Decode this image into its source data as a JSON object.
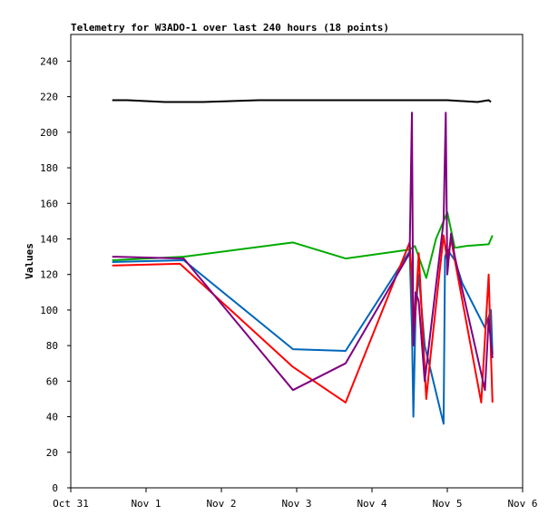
{
  "chart_data": {
    "type": "line",
    "title": "Telemetry for W3ADO-1 over last 240 hours (18 points)",
    "xlabel": "",
    "ylabel": "Values",
    "ylim": [
      0,
      255
    ],
    "yticks": [
      0,
      20,
      40,
      60,
      80,
      100,
      120,
      140,
      160,
      180,
      200,
      220,
      240
    ],
    "xlim": [
      "Oct 31",
      "Nov 6"
    ],
    "xticks": [
      "Oct 31",
      "Nov 1",
      "Nov 2",
      "Nov 3",
      "Nov 4",
      "Nov 5",
      "Nov 6"
    ],
    "grid": false,
    "legend": "none",
    "series": [
      {
        "color": "#000000",
        "x": [
          0.55,
          0.75,
          1.25,
          1.75,
          2.5,
          3.25,
          4.0,
          4.5,
          5.0,
          5.4,
          5.55,
          5.58
        ],
        "y": [
          218,
          218,
          217,
          217,
          218,
          218,
          218,
          218,
          218,
          217,
          218,
          217
        ]
      },
      {
        "color": "#00aa00",
        "x": [
          0.55,
          1.5,
          2.95,
          3.65,
          4.5,
          4.57,
          4.62,
          4.72,
          4.85,
          5.0,
          5.1,
          5.25,
          5.55,
          5.6
        ],
        "y": [
          128,
          130,
          138,
          129,
          134,
          136,
          130,
          118,
          140,
          155,
          135,
          136,
          137,
          142
        ]
      },
      {
        "color": "#0066bb",
        "x": [
          0.55,
          1.5,
          2.95,
          3.65,
          4.5,
          4.53,
          4.55,
          4.58,
          4.62,
          4.7,
          4.95,
          4.97,
          5.0,
          5.1,
          5.2,
          5.5,
          5.58,
          5.6
        ],
        "y": [
          127,
          128,
          78,
          77,
          133,
          90,
          40,
          100,
          120,
          80,
          36,
          130,
          134,
          128,
          115,
          90,
          100,
          75
        ]
      },
      {
        "color": "#ff0000",
        "x": [
          0.55,
          1.45,
          2.95,
          3.65,
          4.5,
          4.53,
          4.55,
          4.58,
          4.62,
          4.72,
          4.78,
          4.95,
          5.0,
          5.05,
          5.1,
          5.45,
          5.55,
          5.58,
          5.6
        ],
        "y": [
          125,
          126,
          68,
          48,
          138,
          118,
          85,
          100,
          132,
          50,
          75,
          142,
          128,
          140,
          128,
          48,
          120,
          75,
          48
        ]
      },
      {
        "color": "#7f007f",
        "x": [
          0.55,
          1.5,
          2.95,
          3.65,
          4.5,
          4.53,
          4.55,
          4.58,
          4.62,
          4.7,
          4.95,
          4.98,
          5.0,
          5.05,
          5.1,
          5.5,
          5.55,
          5.6
        ],
        "y": [
          130,
          129,
          55,
          70,
          132,
          211,
          80,
          110,
          105,
          60,
          150,
          211,
          120,
          143,
          130,
          55,
          95,
          73
        ]
      }
    ]
  }
}
